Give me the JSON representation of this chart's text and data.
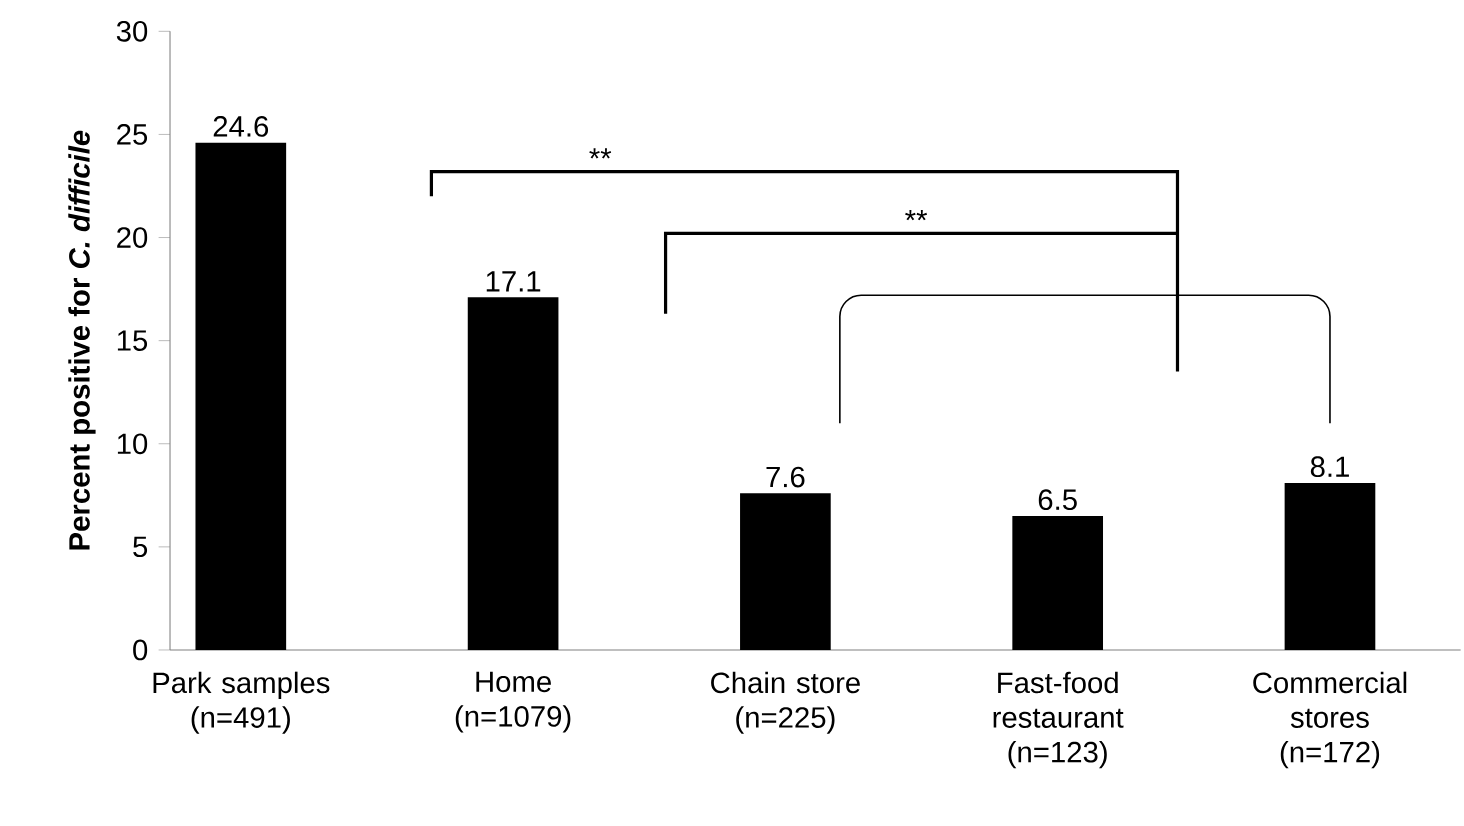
{
  "chart_data": {
    "type": "bar",
    "ylabel": "Percent positive for *C. difficile*",
    "categories": [
      "Park samples (n=491)",
      "Home (n=1079)",
      "Chain store (n=225)",
      "Fast-food restaurant (n=123)",
      "Commercial stores (n=172)"
    ],
    "values": [
      24.6,
      17.1,
      7.6,
      6.5,
      8.1
    ],
    "color": "#000000",
    "ylim": [
      0,
      30
    ],
    "yticks": [
      0,
      5,
      10,
      15,
      20,
      25,
      30
    ],
    "grid": false,
    "data_labels": true,
    "annotations": [
      "**",
      "**"
    ]
  }
}
